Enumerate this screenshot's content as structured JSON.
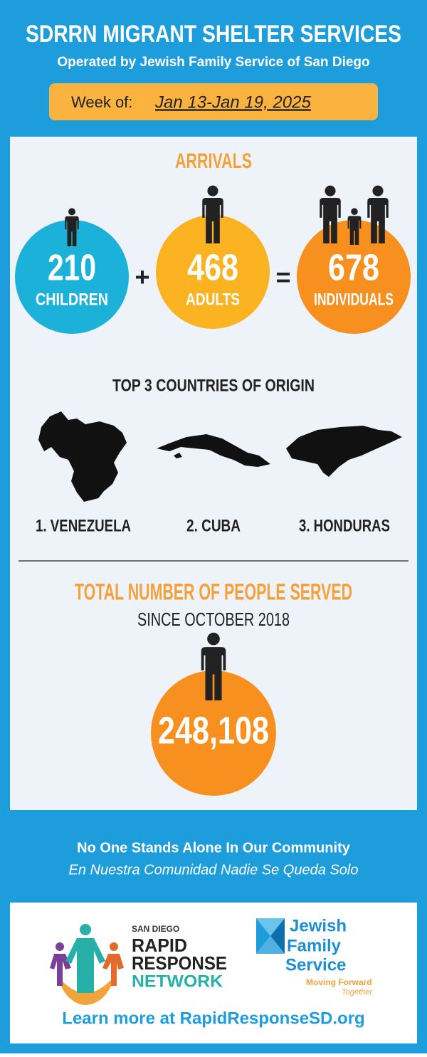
{
  "header": {
    "title": "SDRRN MIGRANT SHELTER SERVICES",
    "subtitle": "Operated by Jewish Family Service of San Diego",
    "week_label": "Week of:",
    "week_dates": "Jan 13-Jan 19, 2025"
  },
  "arrivals": {
    "title": "ARRIVALS",
    "items": [
      {
        "number": "210",
        "label": "CHILDREN"
      },
      {
        "number": "468",
        "label": "ADULTS"
      },
      {
        "number": "678",
        "label": "INDIVIDUALS"
      }
    ],
    "plus": "+",
    "equals": "="
  },
  "countries": {
    "title": "TOP 3 COUNTRIES OF ORIGIN",
    "items": [
      "1. VENEZUELA",
      "2. CUBA",
      "3. HONDURAS"
    ]
  },
  "total": {
    "title": "TOTAL NUMBER OF PEOPLE SERVED",
    "subtitle": "SINCE OCTOBER 2018",
    "number": "248,108"
  },
  "footer": {
    "tagline": "No One Stands Alone In Our Community",
    "tagline_es": "En Nuestra Comunidad Nadie Se Queda Solo",
    "rrn": {
      "small": "SAN DIEGO",
      "line1": "RAPID",
      "line2": "RESPONSE",
      "line3": "NETWORK"
    },
    "jfs": {
      "line1": "Jewish",
      "line2": "Family",
      "line3": "Service",
      "motto1": "Moving Forward",
      "motto2": "Together"
    },
    "link": "Learn more at RapidResponseSD.org"
  }
}
